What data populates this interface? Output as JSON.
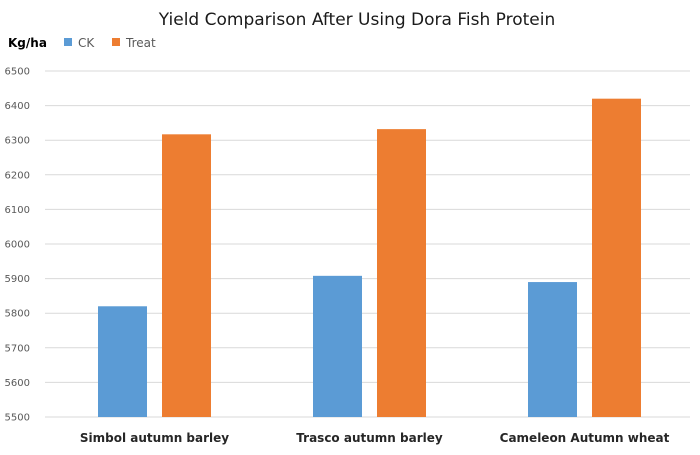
{
  "chart_data": {
    "type": "bar",
    "title": "Yield Comparison After Using Dora Fish Protein",
    "ylabel": "Kg/ha",
    "xlabel": "",
    "categories": [
      "Simbol autumn barley",
      "Trasco autumn barley",
      "Cameleon Autumn wheat"
    ],
    "series": [
      {
        "name": "CK",
        "color": "#5b9bd5",
        "values": [
          5820,
          5908,
          5890
        ]
      },
      {
        "name": "Treat",
        "color": "#ed7d31",
        "values": [
          6317,
          6332,
          6420
        ]
      }
    ],
    "ylim": [
      5500,
      6500
    ],
    "yticks": [
      5500,
      5600,
      5700,
      5800,
      5900,
      6000,
      6100,
      6200,
      6300,
      6400,
      6500
    ],
    "grid": true,
    "legend_position": "top-left"
  }
}
